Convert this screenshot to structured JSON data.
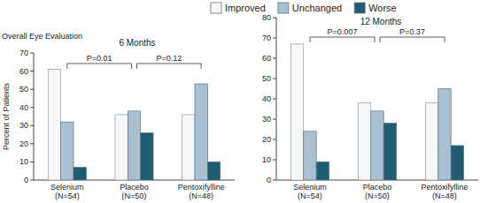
{
  "chart_data": [
    {
      "type": "bar",
      "title": "Overall Eye Evaluation",
      "subtitle": "6 Months",
      "y_label": "Percent of Patients",
      "categories": [
        "Selenium\n(N=54)",
        "Placebo\n(N=50)",
        "Pentoxifylline\n(N=48)"
      ],
      "series": [
        {
          "name": "Improved",
          "color": "#f6f7f9",
          "values": [
            61,
            36,
            36
          ]
        },
        {
          "name": "Unchanged",
          "color": "#a9bfd2",
          "values": [
            32,
            38,
            53
          ]
        },
        {
          "name": "Worse",
          "color": "#1f5d72",
          "values": [
            7,
            26,
            10
          ]
        }
      ],
      "ylim": [
        0,
        70
      ],
      "yticks": [
        0,
        10,
        20,
        30,
        40,
        50,
        60,
        70
      ],
      "legend": "top",
      "grid": false,
      "annotations": [
        {
          "text": "P=0.01",
          "between": [
            0,
            1
          ]
        },
        {
          "text": "P=0.12",
          "between": [
            1,
            2
          ]
        }
      ]
    },
    {
      "type": "bar",
      "subtitle": "12 Months",
      "categories": [
        "Selenium\n(N=54)",
        "Placebo\n(N=50)",
        "Pentoxifylline\n(N=48)"
      ],
      "series": [
        {
          "name": "Improved",
          "color": "#f6f7f9",
          "values": [
            67,
            38,
            38
          ]
        },
        {
          "name": "Unchanged",
          "color": "#a9bfd2",
          "values": [
            24,
            34,
            45
          ]
        },
        {
          "name": "Worse",
          "color": "#1f5d72",
          "values": [
            9,
            28,
            17
          ]
        }
      ],
      "ylim": [
        0,
        80
      ],
      "yticks": [
        0,
        10,
        20,
        30,
        40,
        50,
        60,
        70,
        80
      ],
      "grid": false,
      "annotations": [
        {
          "text": "P=0.007",
          "between": [
            0,
            1
          ]
        },
        {
          "text": "P=0.37",
          "between": [
            1,
            2
          ]
        }
      ]
    }
  ]
}
